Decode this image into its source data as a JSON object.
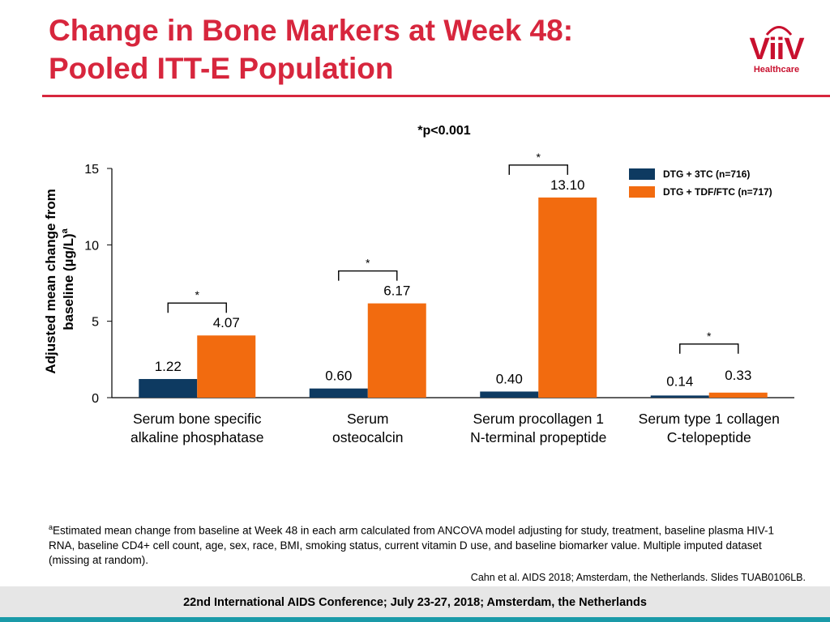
{
  "header": {
    "title_line1": "Change in Bone Markers at Week 48:",
    "title_line2": "Pooled ITT-E Population",
    "logo_word": "ViiV",
    "logo_sub": "Healthcare"
  },
  "colors": {
    "title": "#d7263d",
    "series1": "#0e3a61",
    "series2": "#f26b0f",
    "accent": "#1a9aa8"
  },
  "chart_data": {
    "type": "bar",
    "categories": [
      [
        "Serum bone specific",
        "alkaline phosphatase"
      ],
      [
        "Serum",
        "osteocalcin"
      ],
      [
        "Serum procollagen 1",
        "N-terminal propeptide"
      ],
      [
        "Serum type 1 collagen",
        "C-telopeptide"
      ]
    ],
    "series": [
      {
        "name": "DTG + 3TC (n=716)",
        "values": [
          1.22,
          0.6,
          0.4,
          0.14
        ],
        "labels": [
          "1.22",
          "0.60",
          "0.40",
          "0.14"
        ]
      },
      {
        "name": "DTG + TDF/FTC (n=717)",
        "values": [
          4.07,
          6.17,
          13.1,
          0.33
        ],
        "labels": [
          "4.07",
          "6.17",
          "13.10",
          "0.33"
        ]
      }
    ],
    "ylabel_line1": "Adjusted mean change from",
    "ylabel_line2": "baseline (µg/L)",
    "ylabel_sup": "a",
    "ylim": [
      0,
      15
    ],
    "yticks": [
      0,
      5,
      10,
      15
    ],
    "significance": [
      "*",
      "*",
      "*",
      "*"
    ],
    "pvalue_note": "*p<0.001",
    "legend_position": "top-right"
  },
  "footnote": {
    "sup": "a",
    "text": "Estimated mean change from baseline at Week 48 in each arm calculated from ANCOVA model adjusting for study, treatment, baseline plasma HIV-1 RNA, baseline CD4+ cell count, age, sex, race, BMI, smoking status, current vitamin D use, and baseline biomarker value. Multiple imputed dataset (missing at random)."
  },
  "citation": "Cahn et al. AIDS 2018; Amsterdam, the Netherlands. Slides TUAB0106LB.",
  "footer": {
    "conference": "22nd International AIDS Conference; July 23-27, 2018; Amsterdam, the Netherlands"
  }
}
